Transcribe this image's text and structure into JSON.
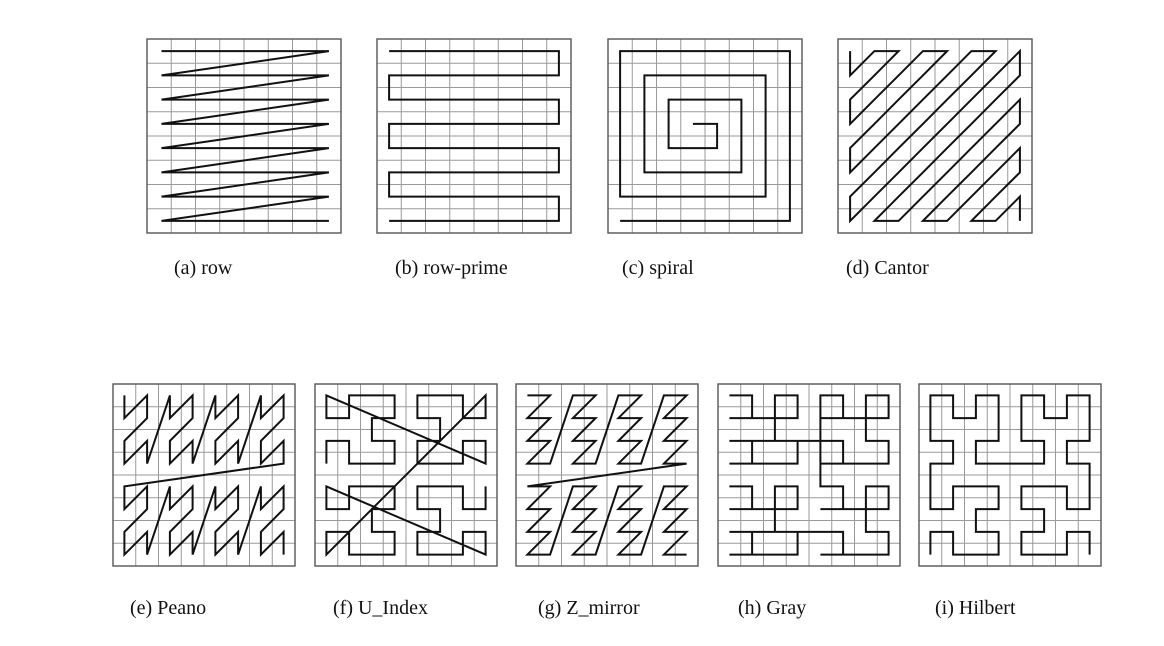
{
  "figure": {
    "grid_cells": 8,
    "line_color": "#111111",
    "grid_color": "#9a9a9a",
    "panels": [
      {
        "id": "a",
        "caption": "(a) row",
        "curve": "row"
      },
      {
        "id": "b",
        "caption": "(b) row-prime",
        "curve": "row-prime"
      },
      {
        "id": "c",
        "caption": "(c) spiral",
        "curve": "spiral"
      },
      {
        "id": "d",
        "caption": "(d) Cantor",
        "curve": "cantor"
      },
      {
        "id": "e",
        "caption": "(e) Peano",
        "curve": "peano"
      },
      {
        "id": "f",
        "caption": "(f) U_Index",
        "curve": "u-index"
      },
      {
        "id": "g",
        "caption": "(g) Z_mirror",
        "curve": "z-mirror"
      },
      {
        "id": "h",
        "caption": "(h) Gray",
        "curve": "gray"
      },
      {
        "id": "i",
        "caption": "(i) Hilbert",
        "curve": "hilbert"
      }
    ]
  }
}
